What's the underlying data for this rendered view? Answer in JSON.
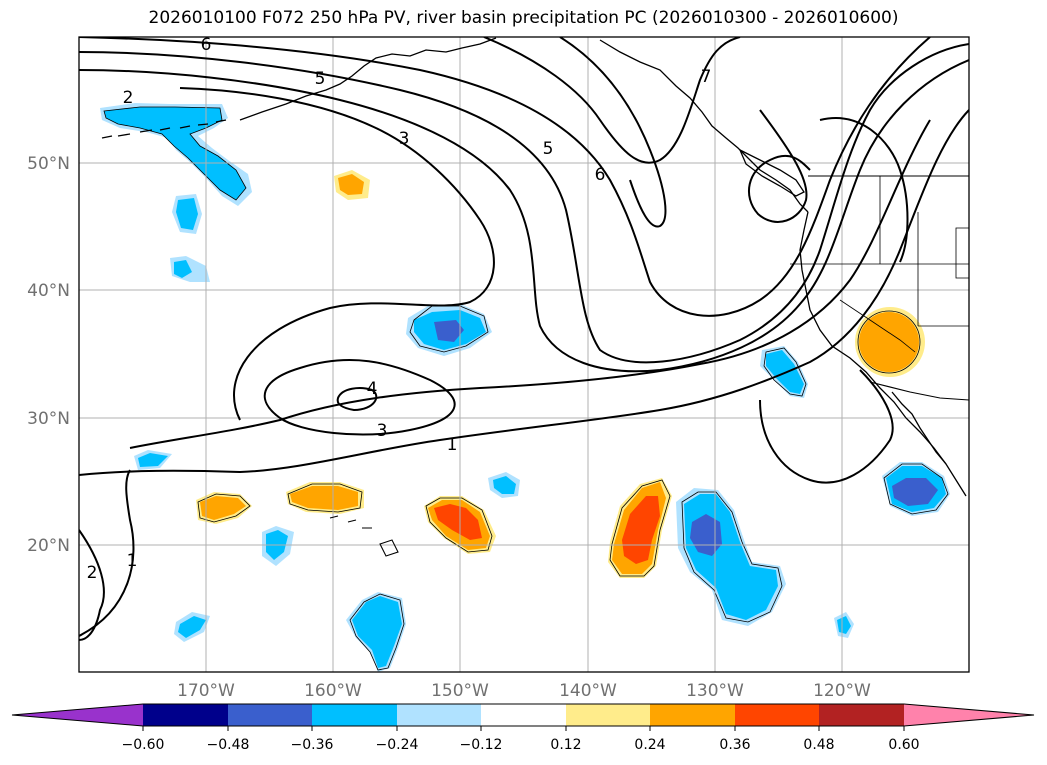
{
  "title": "2026010100 F072 250 hPa PV, river basin precipitation PC (2026010300 - 2026010600)",
  "map": {
    "lat_labels": [
      "50°N",
      "40°N",
      "30°N",
      "20°N"
    ],
    "lon_labels": [
      "170°W",
      "160°W",
      "150°W",
      "140°W",
      "130°W",
      "120°W"
    ],
    "contour_labels": [
      "6",
      "5",
      "2",
      "3",
      "5",
      "6",
      "7",
      "4",
      "3",
      "1",
      "2",
      "1"
    ]
  },
  "colorbar": {
    "ticks": [
      "−0.60",
      "−0.48",
      "−0.36",
      "−0.24",
      "−0.12",
      "0.12",
      "0.24",
      "0.36",
      "0.48",
      "0.60"
    ],
    "colors": [
      "#9932cc",
      "#00008b",
      "#3a5fcd",
      "#00bfff",
      "#b0e2ff",
      "#ffffff",
      "#ffec8b",
      "#ffa500",
      "#ff4500",
      "#b22222",
      "#ff82ab"
    ]
  },
  "shading_colors": {
    "neg_light": "#b0e2ff",
    "neg_mid": "#00bfff",
    "neg_dark": "#3a5fcd",
    "pos_light": "#ffec8b",
    "pos_mid": "#ffa500",
    "pos_dark": "#ff4500"
  }
}
